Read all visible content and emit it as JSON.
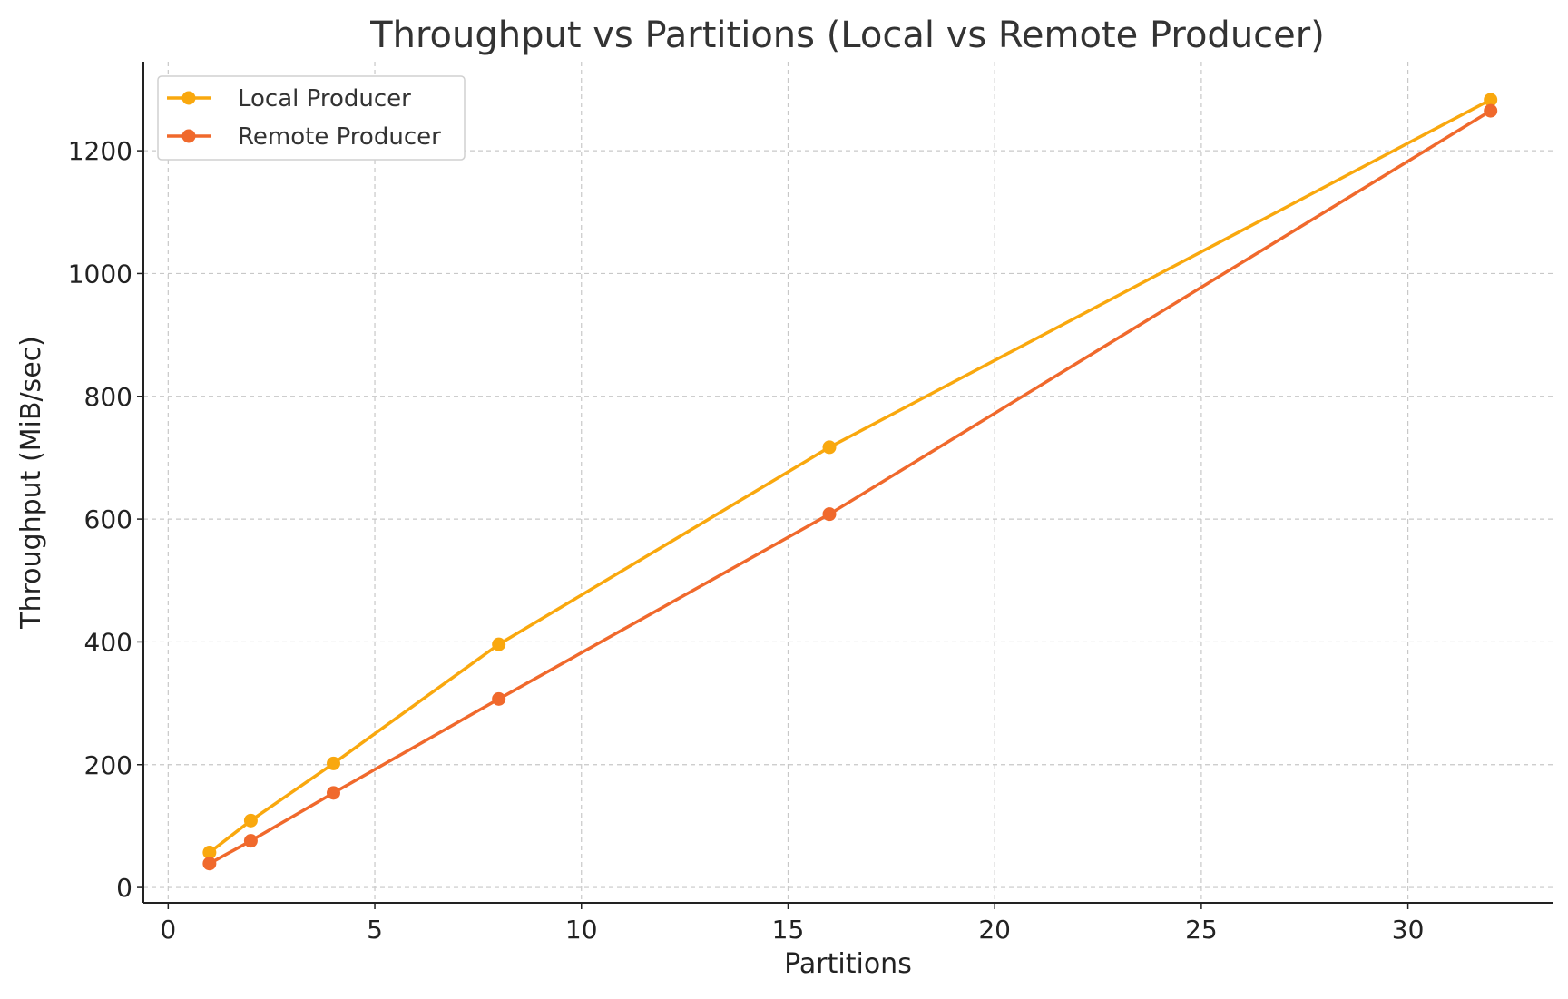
{
  "chart_data": {
    "type": "line",
    "title": "Throughput vs Partitions (Local vs Remote Producer)",
    "xlabel": "Partitions",
    "ylabel": "Throughput (MiB/sec)",
    "xlim": [
      -0.6,
      33.5
    ],
    "ylim": [
      -25,
      1345
    ],
    "xticks": [
      0,
      5,
      10,
      15,
      20,
      25,
      30
    ],
    "yticks": [
      0,
      200,
      400,
      600,
      800,
      1000,
      1200
    ],
    "grid": true,
    "legend_position": "top-left",
    "x": [
      1,
      2,
      4,
      8,
      16,
      32
    ],
    "series": [
      {
        "name": "Local Producer",
        "color": "#F9A80E",
        "values": [
          57,
          109,
          202,
          396,
          717,
          1283
        ]
      },
      {
        "name": "Remote Producer",
        "color": "#F0692C",
        "values": [
          39,
          76,
          154,
          307,
          608,
          1265
        ]
      }
    ]
  }
}
